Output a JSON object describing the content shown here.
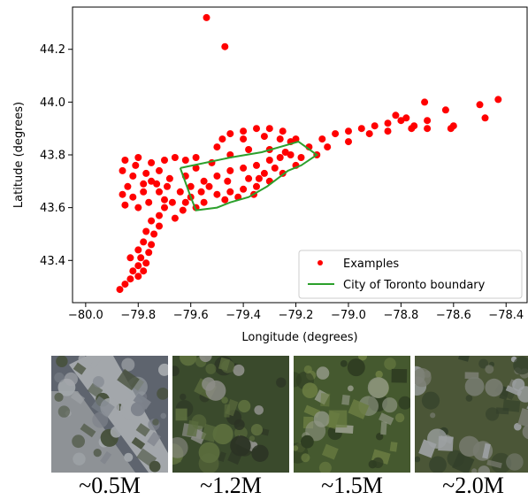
{
  "chart_data": {
    "type": "scatter",
    "title": "",
    "xlabel": "Longitude (degrees)",
    "ylabel": "Latitude (degrees)",
    "xlim": [
      -80.05,
      -78.32
    ],
    "ylim": [
      43.24,
      44.36
    ],
    "xticks": [
      -80.0,
      -79.8,
      -79.6,
      -79.4,
      -79.2,
      -79.0,
      -78.8,
      -78.6,
      -78.4
    ],
    "xtick_labels": [
      "−80.0",
      "−79.8",
      "−79.6",
      "−79.4",
      "−79.2",
      "−79.0",
      "−78.8",
      "−78.6",
      "−78.4"
    ],
    "yticks": [
      43.4,
      43.6,
      43.8,
      44.0,
      44.2
    ],
    "ytick_labels": [
      "43.4",
      "43.6",
      "43.8",
      "44.0",
      "44.2"
    ],
    "grid": false,
    "legend_position": "lower-right",
    "series": [
      {
        "name": "Examples",
        "kind": "scatter",
        "color": "#ff0000",
        "points": [
          [
            -79.54,
            44.32
          ],
          [
            -79.47,
            44.21
          ],
          [
            -78.43,
            44.01
          ],
          [
            -78.71,
            44.0
          ],
          [
            -78.5,
            43.99
          ],
          [
            -78.63,
            43.97
          ],
          [
            -78.7,
            43.93
          ],
          [
            -78.48,
            43.94
          ],
          [
            -78.6,
            43.91
          ],
          [
            -78.61,
            43.9
          ],
          [
            -78.7,
            43.9
          ],
          [
            -79.87,
            43.29
          ],
          [
            -79.85,
            43.31
          ],
          [
            -79.83,
            43.33
          ],
          [
            -79.8,
            43.34
          ],
          [
            -79.78,
            43.36
          ],
          [
            -79.82,
            43.36
          ],
          [
            -79.8,
            43.38
          ],
          [
            -79.77,
            43.39
          ],
          [
            -79.83,
            43.41
          ],
          [
            -79.79,
            43.41
          ],
          [
            -79.76,
            43.43
          ],
          [
            -79.8,
            43.44
          ],
          [
            -79.75,
            43.46
          ],
          [
            -79.78,
            43.47
          ],
          [
            -79.74,
            43.5
          ],
          [
            -79.77,
            43.51
          ],
          [
            -79.72,
            43.53
          ],
          [
            -79.75,
            43.55
          ],
          [
            -79.72,
            43.57
          ],
          [
            -79.7,
            43.6
          ],
          [
            -79.66,
            43.56
          ],
          [
            -79.63,
            43.59
          ],
          [
            -79.67,
            43.62
          ],
          [
            -79.2,
            43.86
          ],
          [
            -79.15,
            43.83
          ],
          [
            -79.1,
            43.86
          ],
          [
            -79.05,
            43.88
          ],
          [
            -79.0,
            43.89
          ],
          [
            -78.95,
            43.9
          ],
          [
            -78.9,
            43.91
          ],
          [
            -78.85,
            43.92
          ],
          [
            -78.8,
            43.93
          ],
          [
            -78.78,
            43.94
          ],
          [
            -78.75,
            43.91
          ],
          [
            -79.08,
            43.83
          ],
          [
            -79.0,
            43.85
          ],
          [
            -78.92,
            43.88
          ],
          [
            -78.85,
            43.89
          ],
          [
            -78.82,
            43.95
          ],
          [
            -78.76,
            43.9
          ],
          [
            -79.12,
            43.8
          ],
          [
            -79.18,
            43.79
          ],
          [
            -79.45,
            43.88
          ],
          [
            -79.4,
            43.89
          ],
          [
            -79.35,
            43.9
          ],
          [
            -79.3,
            43.9
          ],
          [
            -79.25,
            43.89
          ],
          [
            -79.48,
            43.86
          ],
          [
            -79.4,
            43.86
          ],
          [
            -79.32,
            43.87
          ],
          [
            -79.26,
            43.86
          ],
          [
            -79.22,
            43.85
          ],
          [
            -79.5,
            43.83
          ],
          [
            -79.45,
            43.8
          ],
          [
            -79.38,
            43.82
          ],
          [
            -79.3,
            43.82
          ],
          [
            -79.24,
            43.81
          ],
          [
            -79.85,
            43.78
          ],
          [
            -79.8,
            43.79
          ],
          [
            -79.75,
            43.77
          ],
          [
            -79.7,
            43.78
          ],
          [
            -79.66,
            43.79
          ],
          [
            -79.62,
            43.78
          ],
          [
            -79.58,
            43.79
          ],
          [
            -79.86,
            43.74
          ],
          [
            -79.82,
            43.72
          ],
          [
            -79.84,
            43.68
          ],
          [
            -79.86,
            43.65
          ],
          [
            -79.82,
            43.64
          ],
          [
            -79.78,
            43.66
          ],
          [
            -79.75,
            43.7
          ],
          [
            -79.72,
            43.74
          ],
          [
            -79.68,
            43.71
          ],
          [
            -79.85,
            43.61
          ],
          [
            -79.8,
            43.6
          ],
          [
            -79.76,
            43.62
          ],
          [
            -79.72,
            43.66
          ],
          [
            -79.64,
            43.66
          ],
          [
            -79.6,
            43.64
          ],
          [
            -79.58,
            43.6
          ],
          [
            -79.62,
            43.62
          ],
          [
            -79.7,
            43.63
          ],
          [
            -79.78,
            43.69
          ],
          [
            -79.81,
            43.76
          ],
          [
            -79.77,
            43.73
          ],
          [
            -79.73,
            43.69
          ],
          [
            -79.69,
            43.68
          ],
          [
            -79.55,
            43.62
          ],
          [
            -79.5,
            43.65
          ],
          [
            -79.45,
            43.66
          ],
          [
            -79.4,
            43.67
          ],
          [
            -79.35,
            43.68
          ],
          [
            -79.3,
            43.7
          ],
          [
            -79.25,
            43.73
          ],
          [
            -79.2,
            43.76
          ],
          [
            -79.55,
            43.7
          ],
          [
            -79.5,
            43.72
          ],
          [
            -79.45,
            43.74
          ],
          [
            -79.4,
            43.75
          ],
          [
            -79.35,
            43.76
          ],
          [
            -79.3,
            43.78
          ],
          [
            -79.58,
            43.75
          ],
          [
            -79.52,
            43.77
          ],
          [
            -79.46,
            43.7
          ],
          [
            -79.38,
            43.71
          ],
          [
            -79.32,
            43.73
          ],
          [
            -79.28,
            43.75
          ],
          [
            -79.6,
            43.68
          ],
          [
            -79.53,
            43.68
          ],
          [
            -79.42,
            43.64
          ],
          [
            -79.36,
            43.65
          ],
          [
            -79.34,
            43.71
          ],
          [
            -79.26,
            43.79
          ],
          [
            -79.22,
            43.8
          ],
          [
            -79.47,
            43.63
          ],
          [
            -79.56,
            43.66
          ],
          [
            -79.62,
            43.72
          ]
        ]
      },
      {
        "name": "City of Toronto boundary",
        "kind": "line",
        "color": "#2ca02c",
        "points": [
          [
            -79.64,
            43.75
          ],
          [
            -79.45,
            43.79
          ],
          [
            -79.33,
            43.81
          ],
          [
            -79.19,
            43.85
          ],
          [
            -79.12,
            43.8
          ],
          [
            -79.18,
            43.76
          ],
          [
            -79.23,
            43.74
          ],
          [
            -79.31,
            43.68
          ],
          [
            -79.38,
            43.64
          ],
          [
            -79.45,
            43.62
          ],
          [
            -79.5,
            43.6
          ],
          [
            -79.58,
            43.59
          ],
          [
            -79.6,
            43.64
          ],
          [
            -79.64,
            43.75
          ]
        ]
      }
    ]
  },
  "thumbnails": [
    {
      "label": "~0.5M",
      "palette": [
        "#5e646e",
        "#7d828b",
        "#46503a",
        "#a3a7ab"
      ]
    },
    {
      "label": "~1.2M",
      "palette": [
        "#3a4a2c",
        "#5c6e3e",
        "#8d8e88",
        "#2b3324"
      ]
    },
    {
      "label": "~1.5M",
      "palette": [
        "#45592f",
        "#6b7d42",
        "#929886",
        "#2f3d22"
      ]
    },
    {
      "label": "~2.0M",
      "palette": [
        "#4b5637",
        "#787c70",
        "#9da1a3",
        "#33402a"
      ]
    }
  ]
}
